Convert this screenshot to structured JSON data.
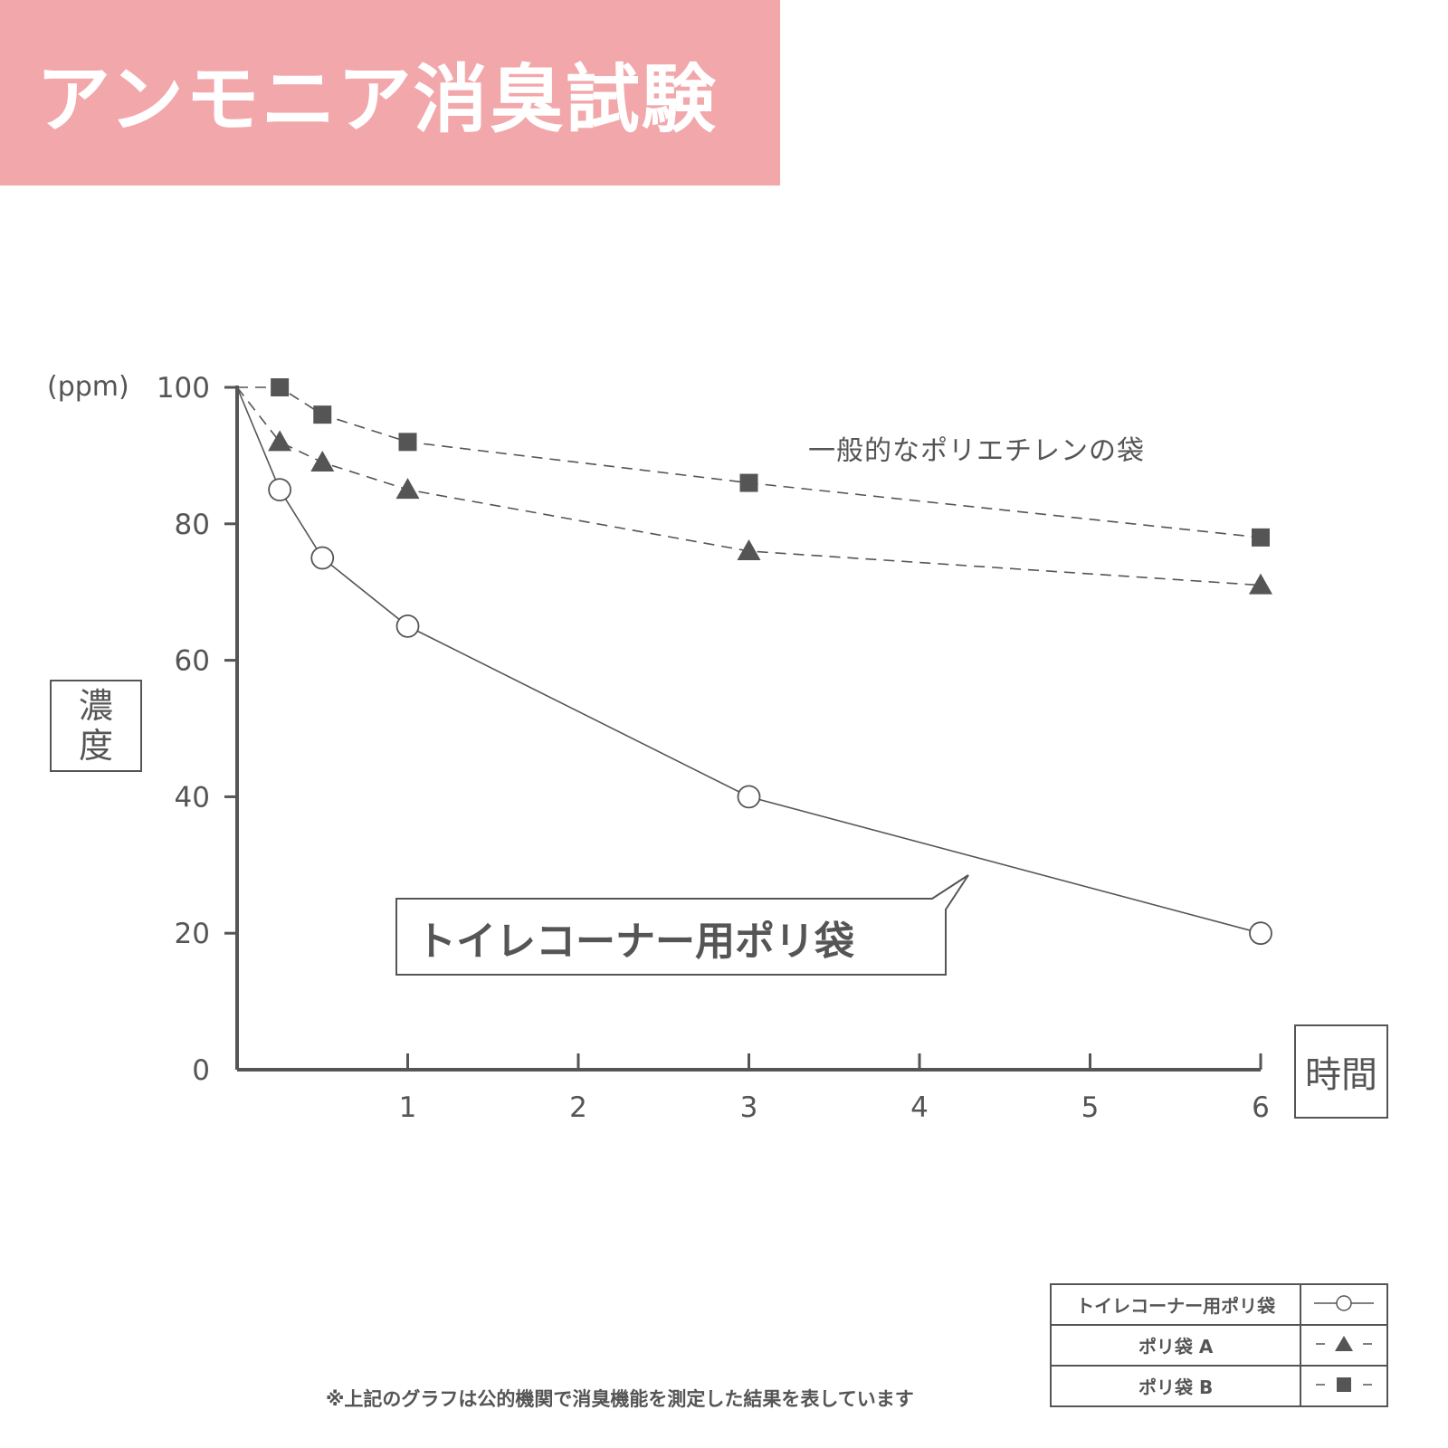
{
  "title": "アンモニア消臭試験",
  "chart_data": {
    "type": "line",
    "unit_label": "(ppm)",
    "ylabel": "濃度",
    "xlabel": "時間",
    "ylim": [
      0,
      100
    ],
    "xlim": [
      0,
      6
    ],
    "y_ticks": [
      0,
      20,
      40,
      60,
      80,
      100
    ],
    "x_ticks": [
      1,
      2,
      3,
      4,
      5,
      6
    ],
    "grid": false,
    "series": [
      {
        "name": "トイレコーナー用ポリ袋",
        "marker": "open-circle",
        "line": "solid",
        "x": [
          0,
          0.25,
          0.5,
          1,
          3,
          6
        ],
        "y": [
          100,
          85,
          75,
          65,
          40,
          20
        ]
      },
      {
        "name": "ポリ袋 A",
        "marker": "filled-triangle",
        "line": "dashed",
        "x": [
          0,
          0.25,
          0.5,
          1,
          3,
          6
        ],
        "y": [
          100,
          92,
          89,
          85,
          76,
          71
        ]
      },
      {
        "name": "ポリ袋 B",
        "marker": "filled-square",
        "line": "dashed",
        "x": [
          0,
          0.25,
          0.5,
          1,
          3,
          6
        ],
        "y": [
          100,
          100,
          96,
          92,
          86,
          78
        ]
      }
    ],
    "annotations": {
      "dashed_group_label": "一般的なポリエチレンの袋",
      "callout": "トイレコーナー用ポリ袋"
    },
    "legend_position": "bottom-right"
  },
  "footnote": "※上記のグラフは公的機関で消臭機能を測定した結果を表しています",
  "colors": {
    "banner": "#f2a7aa",
    "ink": "#555555"
  }
}
